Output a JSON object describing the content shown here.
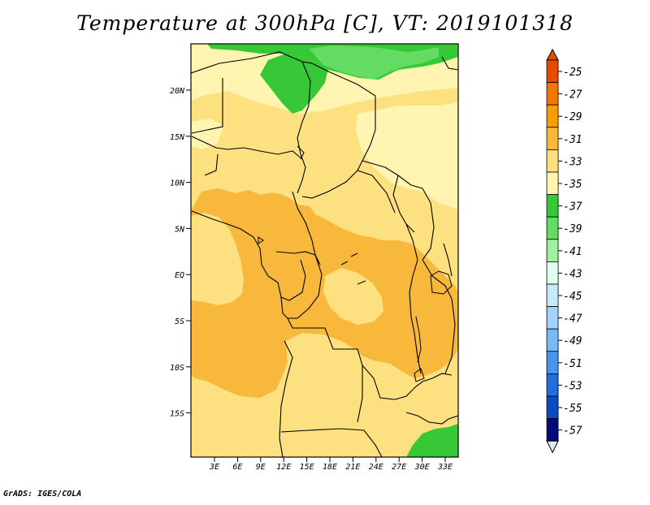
{
  "title": "Temperature at 300hPa [C], VT: 2019101318",
  "credit": "GrADS: IGES/COLA",
  "lat_labels": [
    "20N",
    "15N",
    "10N",
    "5N",
    "EQ",
    "5S",
    "10S",
    "15S"
  ],
  "lon_labels": [
    "3E",
    "6E",
    "9E",
    "12E",
    "15E",
    "18E",
    "21E",
    "24E",
    "27E",
    "30E",
    "33E"
  ],
  "colorbar": {
    "labels": [
      "-25",
      "-27",
      "-29",
      "-31",
      "-33",
      "-35",
      "-37",
      "-39",
      "-41",
      "-43",
      "-45",
      "-47",
      "-49",
      "-51",
      "-53",
      "-55",
      "-57"
    ],
    "colors": [
      "#e84a00",
      "#f07800",
      "#f5a000",
      "#f8b83c",
      "#fde080",
      "#fff5b0",
      "#36c836",
      "#64dc64",
      "#a0f0a0",
      "#e0fff0",
      "#c8e8ff",
      "#a0d2fa",
      "#78b8f5",
      "#4696eb",
      "#1e6edc",
      "#0a4bc3",
      "#000a78"
    ]
  },
  "colors": {
    "band_29_31": "#f8b83c",
    "band_31_33": "#fde080",
    "band_33_35": "#fff5b0",
    "band_35_37": "#36c836",
    "band_37_39": "#64dc64",
    "border": "#000000"
  }
}
